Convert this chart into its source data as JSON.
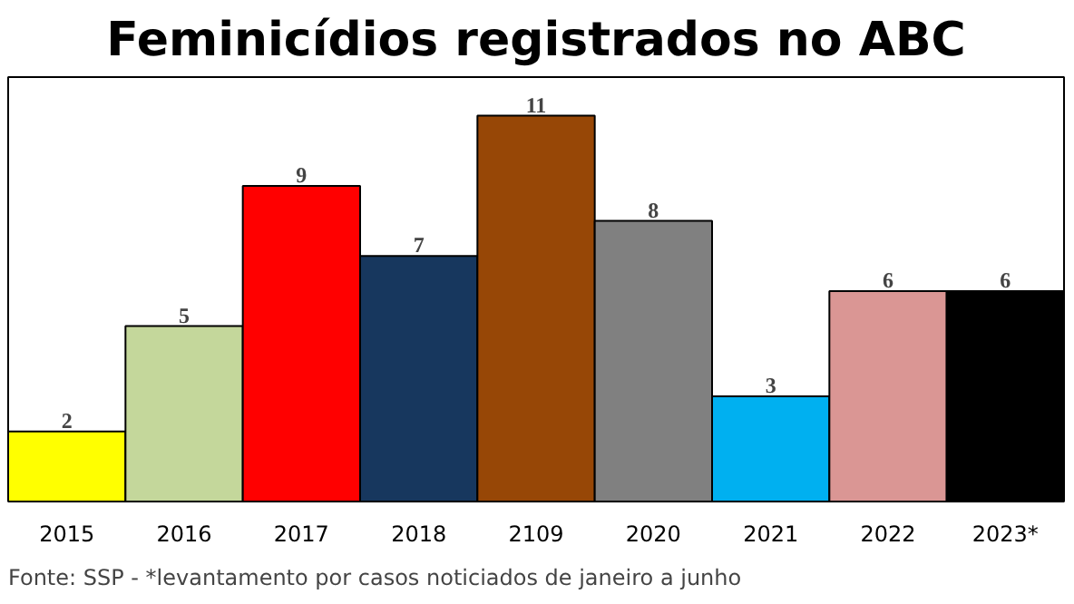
{
  "chart_data": {
    "type": "bar",
    "title": "Feminicídios registrados no ABC",
    "categories": [
      "2015",
      "2016",
      "2017",
      "2018",
      "2109",
      "2020",
      "2021",
      "2022",
      "2023*"
    ],
    "values": [
      2,
      5,
      9,
      7,
      11,
      8,
      3,
      6,
      6
    ],
    "colors": [
      "#ffff00",
      "#c4d79b",
      "#ff0000",
      "#17375e",
      "#974706",
      "#808080",
      "#00b0f0",
      "#da9694",
      "#000000"
    ],
    "data_labels": true,
    "grid": false,
    "annotations": [
      "Fonte: SSP - *levantamento por casos noticiados de janeiro a junho"
    ]
  }
}
